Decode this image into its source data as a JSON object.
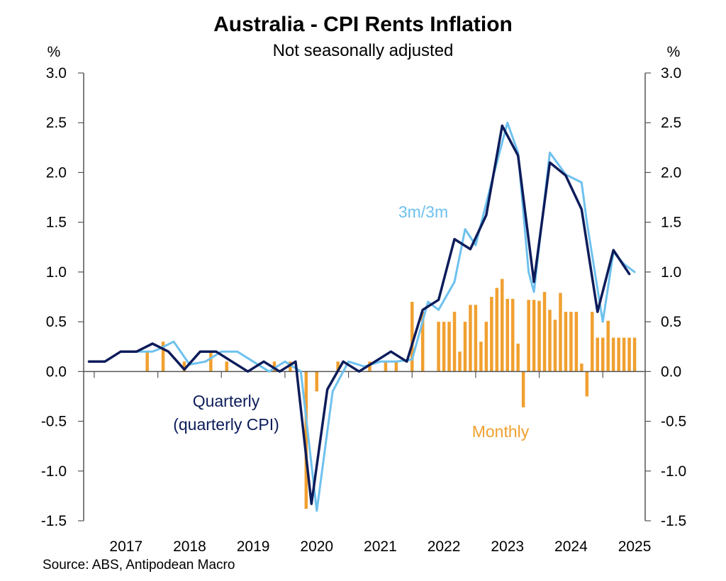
{
  "chart_data": {
    "type": "line",
    "title": "Australia - CPI Rents Inflation",
    "subtitle": "Not seasonally adjusted",
    "source": "Source: ABS, Antipodean Macro",
    "y_unit_left": "%",
    "y_unit_right": "%",
    "ylim": [
      -1.5,
      3.0
    ],
    "y_ticks": [
      "3.0",
      "2.5",
      "2.0",
      "1.5",
      "1.0",
      "0.5",
      "0.0",
      "-0.5",
      "-1.0",
      "-1.5"
    ],
    "y_ticks_right": [
      "3.0",
      "2.5",
      "2.0",
      "1.5",
      "1.0",
      "0.5",
      "0.0",
      "-0.5",
      "-1.0",
      "-1.5"
    ],
    "x_ticks": [
      "2017",
      "2018",
      "2019",
      "2020",
      "2021",
      "2022",
      "2023",
      "2024",
      "2025"
    ],
    "xlim": [
      "2016-11",
      "2025-09"
    ],
    "grid": false,
    "colors": {
      "quarterly": "#0d1c5a",
      "three_month": "#6ec1ee",
      "monthly": "#f0a030",
      "axis": "#555555"
    },
    "series": [
      {
        "name": "Quarterly (quarterly CPI)",
        "label_lines": [
          "Quarterly",
          "(quarterly CPI)"
        ],
        "kind": "line",
        "points": [
          [
            "2016-12",
            0.1
          ],
          [
            "2017-03",
            0.1
          ],
          [
            "2017-06",
            0.2
          ],
          [
            "2017-09",
            0.2
          ],
          [
            "2017-12",
            0.28
          ],
          [
            "2018-03",
            0.2
          ],
          [
            "2018-06",
            0.02
          ],
          [
            "2018-09",
            0.2
          ],
          [
            "2018-12",
            0.2
          ],
          [
            "2019-03",
            0.1
          ],
          [
            "2019-06",
            0.0
          ],
          [
            "2019-09",
            0.1
          ],
          [
            "2019-12",
            0.0
          ],
          [
            "2020-03",
            0.1
          ],
          [
            "2020-06",
            -1.33
          ],
          [
            "2020-09",
            -0.18
          ],
          [
            "2020-12",
            0.1
          ],
          [
            "2021-03",
            0.0
          ],
          [
            "2021-06",
            0.1
          ],
          [
            "2021-09",
            0.2
          ],
          [
            "2021-12",
            0.1
          ],
          [
            "2022-03",
            0.62
          ],
          [
            "2022-06",
            0.72
          ],
          [
            "2022-09",
            1.33
          ],
          [
            "2022-12",
            1.23
          ],
          [
            "2023-03",
            1.57
          ],
          [
            "2023-06",
            2.47
          ],
          [
            "2023-09",
            2.17
          ],
          [
            "2023-12",
            0.9
          ],
          [
            "2024-03",
            2.1
          ],
          [
            "2024-06",
            1.97
          ],
          [
            "2024-09",
            1.63
          ],
          [
            "2024-12",
            0.6
          ],
          [
            "2025-03",
            1.22
          ],
          [
            "2025-06",
            0.98
          ]
        ]
      },
      {
        "name": "3m/3m",
        "label_lines": [
          "3m/3m"
        ],
        "kind": "line",
        "points": [
          [
            "2016-12",
            0.1
          ],
          [
            "2017-03",
            0.1
          ],
          [
            "2017-06",
            0.2
          ],
          [
            "2017-09",
            0.2
          ],
          [
            "2017-12",
            0.2
          ],
          [
            "2018-01",
            0.22
          ],
          [
            "2018-04",
            0.3
          ],
          [
            "2018-07",
            0.07
          ],
          [
            "2018-10",
            0.1
          ],
          [
            "2019-01",
            0.2
          ],
          [
            "2019-04",
            0.2
          ],
          [
            "2019-07",
            0.1
          ],
          [
            "2019-10",
            0.0
          ],
          [
            "2020-01",
            0.1
          ],
          [
            "2020-04",
            0.0
          ],
          [
            "2020-07",
            -1.4
          ],
          [
            "2020-10",
            -0.2
          ],
          [
            "2021-01",
            0.1
          ],
          [
            "2021-04",
            0.05
          ],
          [
            "2021-07",
            0.1
          ],
          [
            "2021-10",
            0.1
          ],
          [
            "2022-01",
            0.12
          ],
          [
            "2022-04",
            0.7
          ],
          [
            "2022-06",
            0.62
          ],
          [
            "2022-09",
            0.9
          ],
          [
            "2022-11",
            1.43
          ],
          [
            "2023-01",
            1.27
          ],
          [
            "2023-04",
            1.9
          ],
          [
            "2023-07",
            2.5
          ],
          [
            "2023-09",
            2.2
          ],
          [
            "2023-11",
            1.0
          ],
          [
            "2023-12",
            0.8
          ],
          [
            "2024-03",
            2.2
          ],
          [
            "2024-06",
            1.98
          ],
          [
            "2024-09",
            1.9
          ],
          [
            "2024-10",
            1.5
          ],
          [
            "2025-01",
            0.5
          ],
          [
            "2025-03",
            1.2
          ],
          [
            "2025-05",
            1.08
          ],
          [
            "2025-07",
            1.0
          ]
        ]
      },
      {
        "name": "Monthly",
        "label_lines": [
          "Monthly"
        ],
        "kind": "bar",
        "points": [
          [
            "2017-11",
            0.2
          ],
          [
            "2018-02",
            0.3
          ],
          [
            "2018-06",
            0.1
          ],
          [
            "2018-11",
            0.2
          ],
          [
            "2019-02",
            0.1
          ],
          [
            "2019-11",
            0.1
          ],
          [
            "2020-02",
            0.1
          ],
          [
            "2020-05",
            -1.38
          ],
          [
            "2020-07",
            -0.2
          ],
          [
            "2020-11",
            0.1
          ],
          [
            "2021-05",
            0.1
          ],
          [
            "2021-08",
            0.1
          ],
          [
            "2021-10",
            0.1
          ],
          [
            "2022-01",
            0.7
          ],
          [
            "2022-03",
            0.6
          ],
          [
            "2022-06",
            0.5
          ],
          [
            "2022-07",
            0.5
          ],
          [
            "2022-08",
            0.5
          ],
          [
            "2022-09",
            0.6
          ],
          [
            "2022-10",
            0.2
          ],
          [
            "2022-11",
            0.5
          ],
          [
            "2022-12",
            0.67
          ],
          [
            "2023-01",
            0.67
          ],
          [
            "2023-02",
            0.3
          ],
          [
            "2023-03",
            0.5
          ],
          [
            "2023-04",
            0.75
          ],
          [
            "2023-05",
            0.84
          ],
          [
            "2023-06",
            0.93
          ],
          [
            "2023-07",
            0.73
          ],
          [
            "2023-08",
            0.73
          ],
          [
            "2023-09",
            0.28
          ],
          [
            "2023-10",
            -0.36
          ],
          [
            "2023-11",
            0.72
          ],
          [
            "2023-12",
            0.72
          ],
          [
            "2024-01",
            0.71
          ],
          [
            "2024-02",
            0.8
          ],
          [
            "2024-03",
            0.62
          ],
          [
            "2024-04",
            0.52
          ],
          [
            "2024-05",
            0.79
          ],
          [
            "2024-06",
            0.6
          ],
          [
            "2024-07",
            0.6
          ],
          [
            "2024-08",
            0.6
          ],
          [
            "2024-09",
            0.08
          ],
          [
            "2024-10",
            -0.25
          ],
          [
            "2024-11",
            0.6
          ],
          [
            "2024-12",
            0.34
          ],
          [
            "2025-01",
            0.34
          ],
          [
            "2025-02",
            0.51
          ],
          [
            "2025-03",
            0.34
          ],
          [
            "2025-04",
            0.34
          ],
          [
            "2025-05",
            0.34
          ],
          [
            "2025-06",
            0.34
          ],
          [
            "2025-07",
            0.34
          ]
        ]
      }
    ]
  }
}
